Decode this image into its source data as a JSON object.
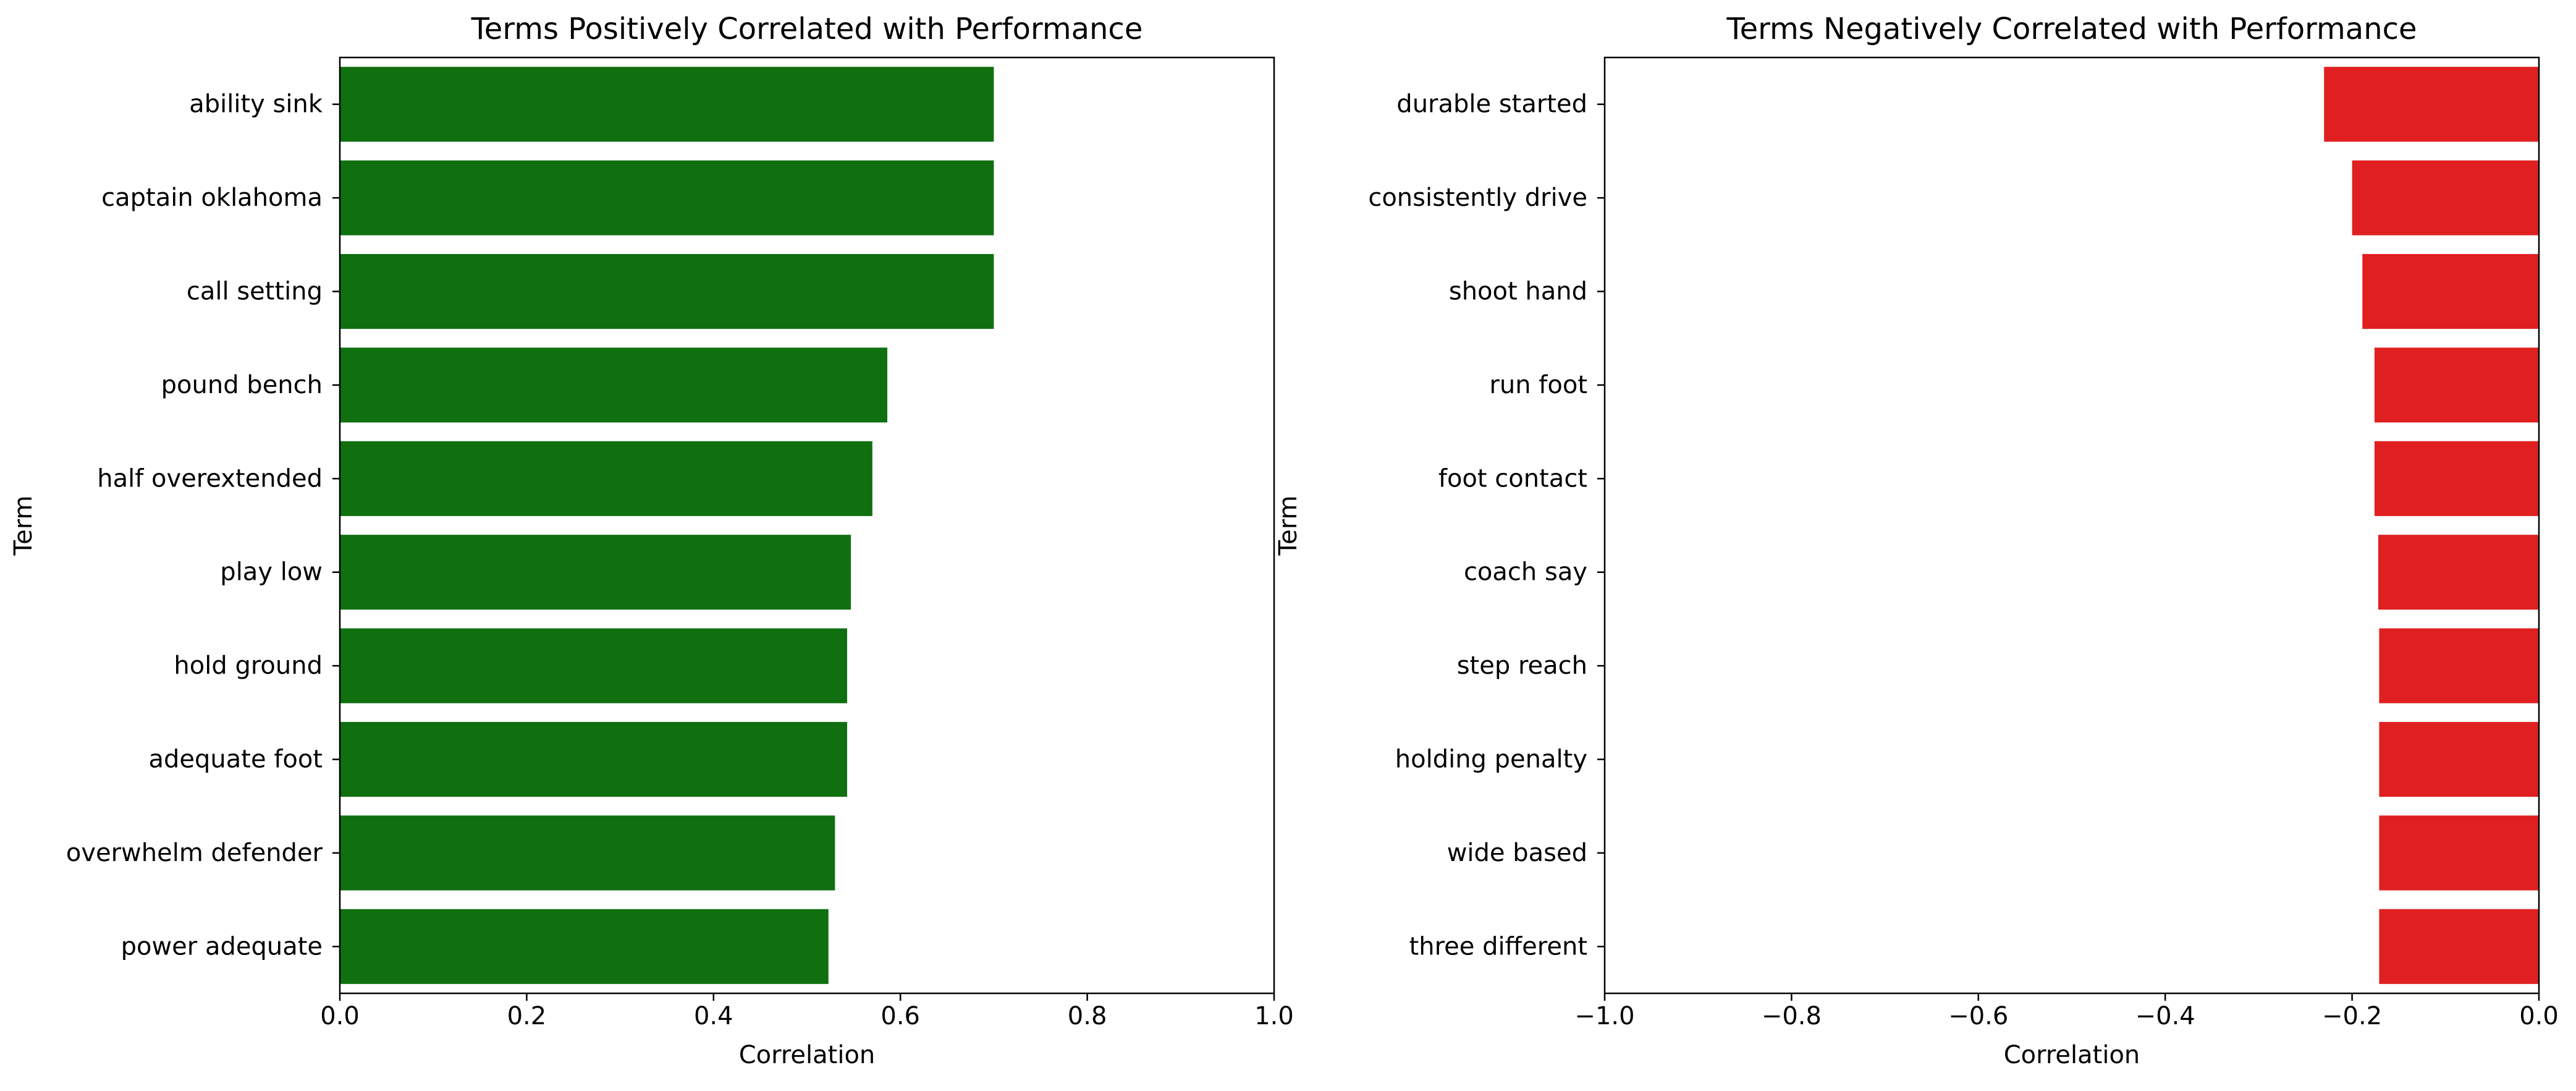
{
  "chart_data": [
    {
      "type": "bar",
      "orientation": "horizontal",
      "title": "Terms Positively Correlated with Performance",
      "xlabel": "Correlation",
      "ylabel": "Term",
      "xlim": [
        0.0,
        1.0
      ],
      "xticks": [
        "0.0",
        "0.2",
        "0.4",
        "0.6",
        "0.8",
        "1.0"
      ],
      "color": "#107010",
      "categories": [
        "ability sink",
        "captain oklahoma",
        "call setting",
        "pound bench",
        "half overextended",
        "play low",
        "hold ground",
        "adequate foot",
        "overwhelm defender",
        "power adequate"
      ],
      "values": [
        0.7,
        0.7,
        0.7,
        0.586,
        0.57,
        0.547,
        0.543,
        0.543,
        0.53,
        0.523
      ]
    },
    {
      "type": "bar",
      "orientation": "horizontal",
      "title": "Terms Negatively Correlated with Performance",
      "xlabel": "Correlation",
      "ylabel": "Term",
      "xlim": [
        -1.0,
        0.0
      ],
      "xticks": [
        "−1.0",
        "−0.8",
        "−0.6",
        "−0.4",
        "−0.2",
        "0.0"
      ],
      "color": "#e02020",
      "categories": [
        "durable started",
        "consistently drive",
        "shoot hand",
        "run foot",
        "foot contact",
        "coach say",
        "step reach",
        "holding penalty",
        "wide based",
        "three different"
      ],
      "values": [
        -0.23,
        -0.2,
        -0.189,
        -0.176,
        -0.176,
        -0.172,
        -0.171,
        -0.171,
        -0.171,
        -0.171
      ]
    }
  ]
}
